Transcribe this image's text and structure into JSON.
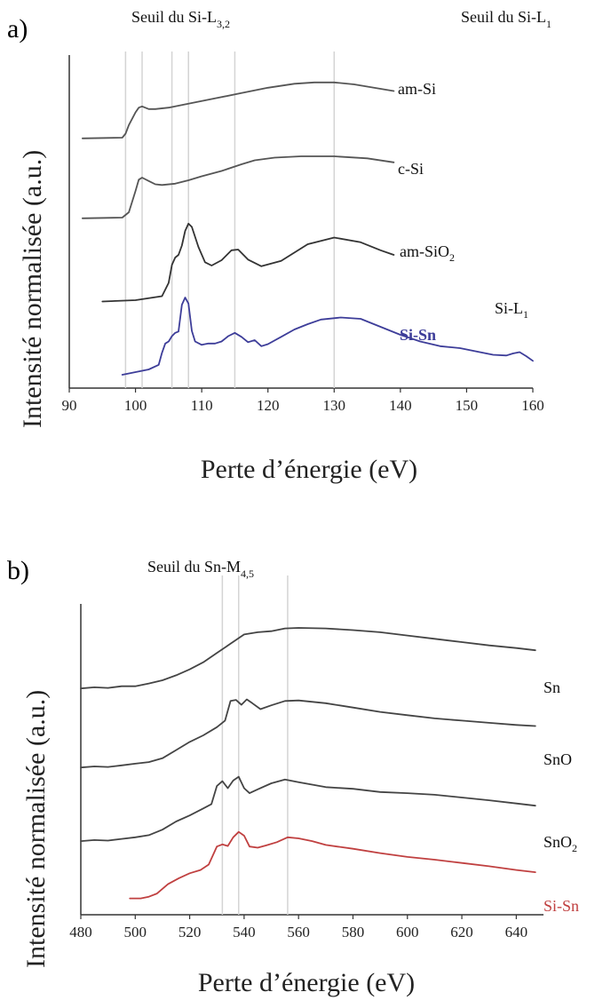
{
  "chart_data": [
    {
      "panel": "a)",
      "type": "line",
      "xlabel": "Perte d’énergie (eV)",
      "ylabel": "Intensité normalisée (a.u.)",
      "xlim": [
        90,
        160
      ],
      "xticks": [
        90,
        100,
        110,
        120,
        130,
        140,
        150,
        160
      ],
      "edge_labels": [
        {
          "base": "Seuil du Si-L",
          "sub": "3,2"
        },
        {
          "base": "Seuil du Si-L",
          "sub": "1"
        }
      ],
      "reference_lines_x": [
        98.5,
        101,
        105.5,
        108,
        115,
        130
      ],
      "annotations": [
        {
          "base": "Si-L",
          "sub": "1",
          "x": 148,
          "y": 5.2
        }
      ],
      "series": [
        {
          "name": "am-Si",
          "label_base": "am-Si",
          "label_sub": "",
          "color": "#555555",
          "x": [
            92,
            98,
            98.5,
            99,
            100,
            100.5,
            101,
            102,
            103,
            105,
            108,
            112,
            116,
            120,
            124,
            127,
            130,
            133,
            136,
            139
          ],
          "y": [
            35.5,
            35.6,
            36.2,
            37.5,
            39.4,
            40.1,
            40.3,
            39.9,
            39.9,
            40.1,
            40.7,
            41.5,
            42.3,
            43.1,
            43.7,
            43.9,
            43.9,
            43.6,
            43.1,
            42.6
          ]
        },
        {
          "name": "c-Si",
          "label_base": "c-Si",
          "label_sub": "",
          "color": "#555555",
          "x": [
            92,
            98,
            99,
            100,
            100.5,
            101,
            102,
            103,
            104,
            106,
            108,
            110,
            113,
            116,
            118,
            121,
            125,
            130,
            135,
            139
          ],
          "y": [
            23.5,
            23.6,
            24.4,
            27.6,
            29.3,
            29.6,
            29.1,
            28.6,
            28.5,
            28.7,
            29.2,
            29.8,
            30.6,
            31.6,
            32.2,
            32.6,
            32.8,
            32.8,
            32.5,
            31.9
          ]
        },
        {
          "name": "am-SiO2",
          "label_base": "am-SiO",
          "label_sub": "2",
          "color": "#333333",
          "x": [
            95,
            100,
            104,
            105,
            105.5,
            106,
            106.5,
            107,
            107.5,
            108,
            108.5,
            109.5,
            110.5,
            111.5,
            113,
            114.5,
            115.5,
            117,
            119,
            122,
            126,
            130,
            134,
            137,
            139
          ],
          "y": [
            11.0,
            11.2,
            11.8,
            13.8,
            16.5,
            17.6,
            18.0,
            19.4,
            21.6,
            22.7,
            22.2,
            19.2,
            16.9,
            16.4,
            17.2,
            18.7,
            18.8,
            17.3,
            16.3,
            17.1,
            19.6,
            20.6,
            19.9,
            18.7,
            18.0
          ]
        },
        {
          "name": "Si-Sn",
          "label_base": "Si-Sn",
          "label_sub": "",
          "color": "#3d3d99",
          "x": [
            98,
            102,
            103.5,
            104,
            104.5,
            105,
            105.5,
            106,
            106.5,
            107,
            107.5,
            108,
            108.5,
            109,
            110,
            111,
            112,
            113,
            114,
            115,
            116,
            117,
            118,
            119,
            120,
            122,
            124,
            126,
            128,
            131,
            134,
            137,
            140,
            143,
            146,
            149,
            152,
            154,
            156,
            157,
            158,
            159,
            160
          ],
          "y": [
            0.0,
            0.8,
            1.5,
            3.3,
            4.7,
            5.0,
            5.8,
            6.3,
            6.5,
            10.5,
            11.6,
            10.7,
            6.6,
            5.0,
            4.5,
            4.7,
            4.7,
            5.0,
            5.8,
            6.3,
            5.7,
            4.9,
            5.2,
            4.3,
            4.6,
            5.7,
            6.8,
            7.6,
            8.3,
            8.6,
            8.4,
            7.2,
            6.0,
            5.0,
            4.3,
            4.0,
            3.4,
            3.0,
            2.9,
            3.2,
            3.4,
            2.8,
            2.1
          ]
        }
      ]
    },
    {
      "panel": "b)",
      "type": "line",
      "xlabel": "Perte d’énergie (eV)",
      "ylabel": "Intensité normalisée (a.u.)",
      "xlim": [
        480,
        650
      ],
      "xticks": [
        480,
        500,
        520,
        540,
        560,
        580,
        600,
        620,
        640
      ],
      "edge_labels": [
        {
          "base": "Seuil du Sn-M",
          "sub": "4,5"
        }
      ],
      "reference_lines_x": [
        532,
        538,
        556
      ],
      "series": [
        {
          "name": "Sn",
          "label_base": "Sn",
          "label_sub": "",
          "color": "#444444",
          "x": [
            480,
            485,
            490,
            495,
            500,
            505,
            510,
            515,
            520,
            525,
            530,
            535,
            540,
            545,
            550,
            555,
            560,
            570,
            580,
            590,
            600,
            610,
            620,
            630,
            640,
            647
          ],
          "y": [
            38.5,
            38.7,
            38.6,
            38.9,
            38.9,
            39.4,
            40.0,
            40.9,
            42.0,
            43.3,
            45.0,
            46.7,
            48.4,
            48.8,
            49.0,
            49.5,
            49.6,
            49.5,
            49.2,
            48.8,
            48.2,
            47.6,
            47.0,
            46.4,
            45.9,
            45.5
          ]
        },
        {
          "name": "SnO",
          "label_base": "SnO",
          "label_sub": "",
          "color": "#444444",
          "x": [
            480,
            485,
            490,
            495,
            500,
            505,
            510,
            515,
            520,
            525,
            530,
            533,
            535,
            537,
            539,
            541,
            543,
            546,
            550,
            555,
            560,
            570,
            580,
            590,
            600,
            610,
            620,
            630,
            640,
            647
          ],
          "y": [
            24.0,
            24.2,
            24.1,
            24.4,
            24.7,
            25.0,
            25.7,
            27.2,
            28.7,
            29.9,
            31.4,
            32.6,
            36.2,
            36.4,
            35.5,
            36.5,
            35.8,
            34.7,
            35.4,
            36.2,
            36.3,
            35.8,
            35.0,
            34.2,
            33.6,
            33.0,
            32.6,
            32.2,
            31.8,
            31.6
          ]
        },
        {
          "name": "SnO2",
          "label_base": "SnO",
          "label_sub": "2",
          "color": "#444444",
          "x": [
            480,
            485,
            490,
            495,
            500,
            505,
            510,
            515,
            520,
            525,
            528,
            530,
            532,
            534,
            536,
            538,
            540,
            542,
            545,
            550,
            555,
            560,
            570,
            580,
            590,
            600,
            610,
            620,
            630,
            640,
            647
          ],
          "y": [
            10.5,
            10.7,
            10.6,
            10.9,
            11.2,
            11.6,
            12.6,
            14.1,
            15.2,
            16.5,
            17.3,
            20.6,
            21.5,
            20.2,
            21.6,
            22.3,
            20.2,
            19.3,
            20.0,
            21.1,
            21.8,
            21.3,
            20.4,
            20.1,
            19.5,
            19.3,
            19.0,
            18.5,
            18.0,
            17.4,
            17.0
          ]
        },
        {
          "name": "Si-Sn",
          "label_base": "Si-Sn",
          "label_sub": "",
          "color": "#c04040",
          "x": [
            498,
            502,
            505,
            508,
            512,
            516,
            520,
            524,
            527,
            530,
            532,
            534,
            536,
            538,
            540,
            542,
            545,
            548,
            552,
            556,
            560,
            565,
            570,
            580,
            590,
            600,
            610,
            620,
            630,
            640,
            647
          ],
          "y": [
            0.0,
            0.0,
            0.3,
            0.9,
            2.6,
            3.7,
            4.6,
            5.2,
            6.2,
            9.5,
            9.9,
            9.6,
            11.2,
            12.2,
            11.5,
            9.5,
            9.3,
            9.7,
            10.3,
            11.2,
            11.0,
            10.5,
            9.8,
            9.1,
            8.3,
            7.6,
            7.1,
            6.5,
            5.9,
            5.2,
            4.8
          ]
        }
      ]
    }
  ]
}
